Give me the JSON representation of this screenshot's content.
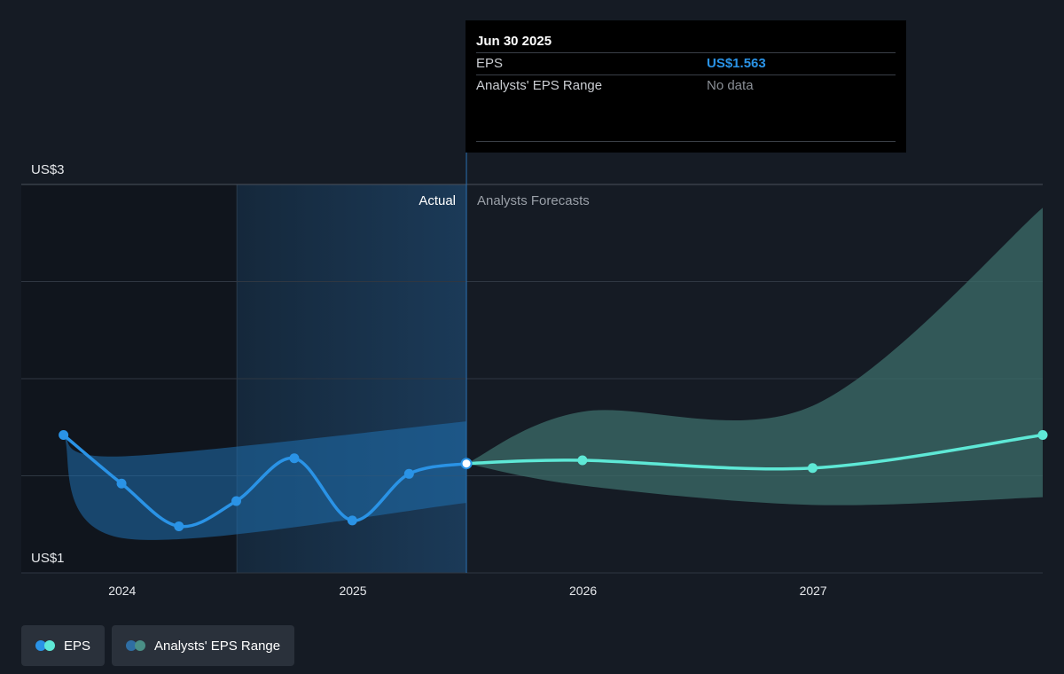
{
  "tooltip": {
    "date": "Jun 30 2025",
    "rows": [
      {
        "label": "EPS",
        "value": "US$1.563"
      },
      {
        "label": "Analysts' EPS Range",
        "value": "No data"
      }
    ]
  },
  "regions": {
    "actual_label": "Actual",
    "forecast_label": "Analysts Forecasts"
  },
  "legend": [
    {
      "label": "EPS",
      "colors": [
        "#2a93e6",
        "#5ee8d6"
      ]
    },
    {
      "label": "Analysts' EPS Range",
      "colors": [
        "#2f6ea3",
        "#4a8f86"
      ]
    }
  ],
  "colors": {
    "eps_actual": "#2a93e6",
    "eps_forecast": "#5ee8d6",
    "range_actual": "#1f6fae",
    "range_forecast": "#3c6e69",
    "background": "#151b24"
  },
  "chart_data": {
    "type": "line",
    "title": "",
    "xlabel": "",
    "ylabel": "",
    "y_axis_labels": [
      "US$3",
      "US$1"
    ],
    "ylim": [
      1,
      3
    ],
    "xlim": [
      "2023-07-25",
      "2027-12-31"
    ],
    "x_ticks": [
      "2024",
      "2025",
      "2026",
      "2027"
    ],
    "divider_date": "2025-06-30",
    "highlight_start": "2024-07-01",
    "grid": true,
    "legend_position": "bottom-left",
    "series": [
      {
        "name": "EPS",
        "kind": "actual",
        "x": [
          "2023-09-30",
          "2023-12-31",
          "2024-03-31",
          "2024-06-30",
          "2024-09-30",
          "2024-12-31",
          "2025-03-31",
          "2025-06-30"
        ],
        "y": [
          1.71,
          1.46,
          1.24,
          1.37,
          1.59,
          1.27,
          1.51,
          1.563
        ]
      },
      {
        "name": "EPS",
        "kind": "forecast",
        "x": [
          "2025-06-30",
          "2025-12-31",
          "2026-12-31",
          "2027-12-31"
        ],
        "y": [
          1.563,
          1.58,
          1.54,
          1.71
        ]
      },
      {
        "name": "Analysts' EPS Range",
        "kind": "range_actual",
        "x": [
          "2023-09-30",
          "2023-12-31",
          "2025-06-30"
        ],
        "low": [
          1.71,
          1.18,
          1.36
        ],
        "high": [
          1.71,
          1.6,
          1.78
        ]
      },
      {
        "name": "Analysts' EPS Range",
        "kind": "range_forecast",
        "x": [
          "2025-06-30",
          "2025-12-31",
          "2026-12-31",
          "2027-12-31"
        ],
        "low": [
          1.563,
          1.45,
          1.35,
          1.39
        ],
        "high": [
          1.563,
          1.83,
          1.86,
          2.88
        ]
      }
    ]
  }
}
